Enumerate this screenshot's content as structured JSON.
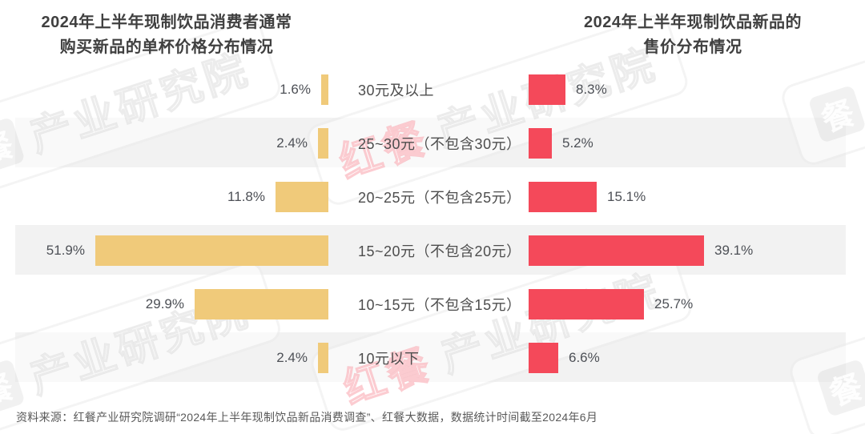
{
  "titles": {
    "left": "2024年上半年现制饮品消费者通常\n购买新品的单杯价格分布情况",
    "right": "2024年上半年现制饮品新品的\n售价分布情况"
  },
  "chart_data": {
    "type": "bar",
    "layout": "horizontal-mirrored",
    "categories": [
      "30元及以上",
      "25~30元（不包含30元）",
      "20~25元（不包含25元）",
      "15~20元（不包含20元）",
      "10~15元（不包含15元）",
      "10元以下"
    ],
    "series": [
      {
        "name": "2024年上半年现制饮品消费者通常购买新品的单杯价格分布情况",
        "side": "left",
        "color": "#F0CA7A",
        "values": [
          1.6,
          2.4,
          11.8,
          51.9,
          29.9,
          2.4
        ]
      },
      {
        "name": "2024年上半年现制饮品新品的售价分布情况",
        "side": "right",
        "color": "#F4495A",
        "values": [
          8.3,
          5.2,
          15.1,
          39.1,
          25.7,
          6.6
        ]
      }
    ],
    "value_suffix": "%",
    "xlim": [
      0,
      55
    ],
    "grid": false,
    "legend": "none",
    "striped_rows": [
      2,
      4,
      6
    ],
    "stripe_color": "#F2F2F2"
  },
  "watermark": {
    "brand": "红餐",
    "label": "产业研究院",
    "logo_glyph": "餐"
  },
  "source": "资料来源：红餐产业研究院调研“2024年上半年现制饮品新品消费调查”、红餐大数据，数据统计时间截至2024年6月",
  "colors": {
    "bar_left": "#F0CA7A",
    "bar_right": "#F4495A",
    "stripe": "#F2F2F2",
    "title_text": "#404040",
    "body_text": "#4D4D4D",
    "source_text": "#595959"
  }
}
